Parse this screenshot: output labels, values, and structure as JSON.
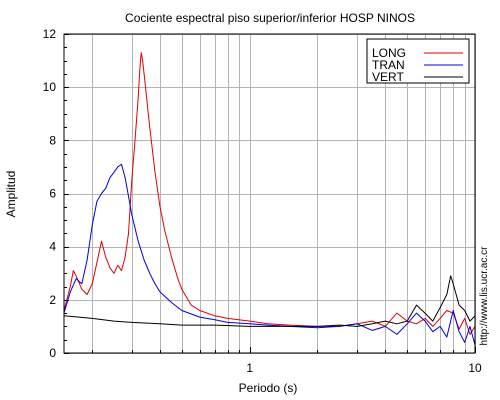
{
  "chart_data": {
    "type": "line",
    "title": "Cociente espectral piso superior/inferior  HOSP NINOS",
    "xlabel": "Periodo (s)",
    "ylabel": "Amplitud",
    "x_scale": "log",
    "xlim": [
      0.15,
      10
    ],
    "ylim": [
      0,
      12
    ],
    "grid": true,
    "legend_position": "top-right",
    "x_tick_labels": [
      {
        "value": 1,
        "label": "1"
      },
      {
        "value": 10,
        "label": "10"
      }
    ],
    "y_tick_labels": [
      {
        "value": 0,
        "label": "0"
      },
      {
        "value": 2,
        "label": "2"
      },
      {
        "value": 4,
        "label": "4"
      },
      {
        "value": 6,
        "label": "6"
      },
      {
        "value": 8,
        "label": "8"
      },
      {
        "value": 10,
        "label": "10"
      },
      {
        "value": 12,
        "label": "12"
      }
    ],
    "x_minor_ticks": [
      0.2,
      0.3,
      0.4,
      0.5,
      0.6,
      0.7,
      0.8,
      0.9,
      2,
      3,
      4,
      5,
      6,
      7,
      8,
      9
    ],
    "series": [
      {
        "name": "LONG",
        "color": "#e00000",
        "points": [
          [
            0.15,
            1.6
          ],
          [
            0.16,
            2.5
          ],
          [
            0.165,
            3.1
          ],
          [
            0.17,
            2.9
          ],
          [
            0.18,
            2.4
          ],
          [
            0.19,
            2.2
          ],
          [
            0.2,
            2.6
          ],
          [
            0.21,
            3.4
          ],
          [
            0.22,
            4.2
          ],
          [
            0.23,
            3.6
          ],
          [
            0.24,
            3.2
          ],
          [
            0.25,
            3.0
          ],
          [
            0.26,
            3.3
          ],
          [
            0.27,
            3.1
          ],
          [
            0.28,
            3.6
          ],
          [
            0.29,
            4.5
          ],
          [
            0.3,
            6.5
          ],
          [
            0.31,
            8.0
          ],
          [
            0.32,
            9.6
          ],
          [
            0.325,
            10.6
          ],
          [
            0.33,
            11.3
          ],
          [
            0.335,
            11.0
          ],
          [
            0.34,
            10.5
          ],
          [
            0.36,
            8.5
          ],
          [
            0.38,
            6.8
          ],
          [
            0.4,
            5.5
          ],
          [
            0.42,
            4.6
          ],
          [
            0.45,
            3.6
          ],
          [
            0.48,
            2.8
          ],
          [
            0.5,
            2.4
          ],
          [
            0.55,
            1.8
          ],
          [
            0.6,
            1.6
          ],
          [
            0.7,
            1.4
          ],
          [
            0.8,
            1.3
          ],
          [
            1.0,
            1.2
          ],
          [
            1.2,
            1.1
          ],
          [
            1.5,
            1.05
          ],
          [
            2.0,
            1.0
          ],
          [
            2.5,
            1.0
          ],
          [
            3.0,
            1.1
          ],
          [
            3.5,
            1.2
          ],
          [
            4.0,
            1.0
          ],
          [
            4.5,
            1.5
          ],
          [
            5.0,
            1.2
          ],
          [
            5.5,
            1.1
          ],
          [
            6.0,
            1.3
          ],
          [
            6.5,
            1.0
          ],
          [
            7.0,
            1.3
          ],
          [
            7.5,
            1.6
          ],
          [
            8.0,
            1.5
          ],
          [
            8.5,
            0.9
          ],
          [
            9.0,
            1.3
          ],
          [
            9.5,
            0.7
          ],
          [
            10.0,
            1.0
          ]
        ]
      },
      {
        "name": "TRAN",
        "color": "#0000e0",
        "points": [
          [
            0.15,
            1.5
          ],
          [
            0.16,
            2.3
          ],
          [
            0.17,
            2.8
          ],
          [
            0.18,
            2.6
          ],
          [
            0.19,
            3.5
          ],
          [
            0.2,
            4.8
          ],
          [
            0.21,
            5.7
          ],
          [
            0.22,
            6.0
          ],
          [
            0.23,
            6.2
          ],
          [
            0.24,
            6.6
          ],
          [
            0.25,
            6.8
          ],
          [
            0.26,
            7.0
          ],
          [
            0.27,
            7.1
          ],
          [
            0.28,
            6.6
          ],
          [
            0.29,
            5.9
          ],
          [
            0.3,
            5.2
          ],
          [
            0.32,
            4.2
          ],
          [
            0.34,
            3.5
          ],
          [
            0.36,
            3.0
          ],
          [
            0.38,
            2.6
          ],
          [
            0.4,
            2.3
          ],
          [
            0.45,
            1.9
          ],
          [
            0.5,
            1.6
          ],
          [
            0.6,
            1.35
          ],
          [
            0.7,
            1.25
          ],
          [
            0.8,
            1.15
          ],
          [
            1.0,
            1.1
          ],
          [
            1.2,
            1.05
          ],
          [
            1.5,
            1.0
          ],
          [
            2.0,
            0.95
          ],
          [
            2.5,
            1.0
          ],
          [
            3.0,
            1.1
          ],
          [
            3.5,
            0.85
          ],
          [
            4.0,
            1.0
          ],
          [
            4.5,
            0.7
          ],
          [
            5.0,
            1.1
          ],
          [
            5.5,
            1.5
          ],
          [
            6.0,
            1.2
          ],
          [
            6.5,
            0.8
          ],
          [
            7.0,
            1.0
          ],
          [
            7.5,
            0.6
          ],
          [
            8.0,
            1.6
          ],
          [
            8.5,
            0.8
          ],
          [
            9.0,
            0.4
          ],
          [
            9.5,
            1.0
          ],
          [
            10.0,
            0.3
          ]
        ]
      },
      {
        "name": "VERT",
        "color": "#000000",
        "points": [
          [
            0.15,
            1.4
          ],
          [
            0.2,
            1.3
          ],
          [
            0.25,
            1.2
          ],
          [
            0.3,
            1.15
          ],
          [
            0.4,
            1.1
          ],
          [
            0.5,
            1.05
          ],
          [
            0.7,
            1.05
          ],
          [
            1.0,
            1.0
          ],
          [
            1.5,
            1.0
          ],
          [
            2.0,
            1.0
          ],
          [
            2.5,
            1.05
          ],
          [
            3.0,
            1.0
          ],
          [
            3.5,
            1.1
          ],
          [
            4.0,
            1.2
          ],
          [
            4.5,
            1.1
          ],
          [
            5.0,
            1.2
          ],
          [
            5.5,
            1.8
          ],
          [
            6.0,
            1.5
          ],
          [
            6.5,
            1.2
          ],
          [
            7.0,
            1.7
          ],
          [
            7.5,
            2.2
          ],
          [
            7.8,
            2.9
          ],
          [
            8.0,
            2.6
          ],
          [
            8.5,
            1.8
          ],
          [
            9.0,
            1.6
          ],
          [
            9.5,
            1.2
          ],
          [
            10.0,
            1.4
          ]
        ]
      }
    ]
  },
  "watermark": "http://www.lis.ucr.ac.cr"
}
